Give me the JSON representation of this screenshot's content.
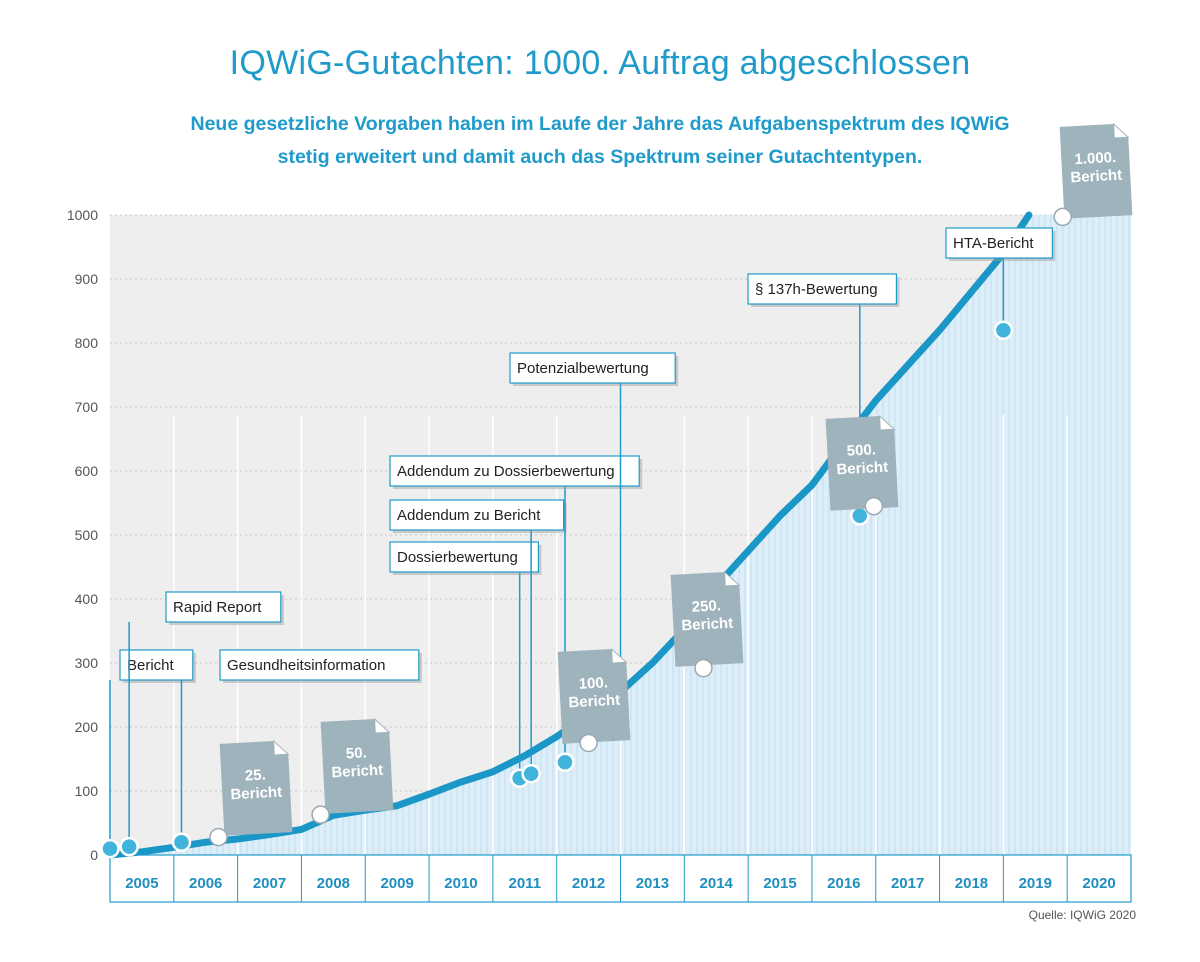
{
  "header": {
    "title": "IQWiG-Gutachten: 1000. Auftrag abgeschlossen",
    "subtitle_line1": "Neue gesetzliche Vorgaben haben im Laufe der Jahre das Aufgabenspektrum des IQWiG",
    "subtitle_line2": "stetig erweitert und damit auch das Spektrum seiner Gutachtentypen."
  },
  "footer": {
    "source": "Quelle: IQWiG 2020"
  },
  "colors": {
    "accent": "#1f9bcb",
    "line": "#1a97c7",
    "area": "#deeef8",
    "plot_bg": "#eeeeee",
    "doc": "#9fb3bd",
    "label_border": "#1f9bcb"
  },
  "chart_data": {
    "type": "area",
    "title": "IQWiG-Gutachten: 1000. Auftrag abgeschlossen",
    "xlabel": "",
    "ylabel": "",
    "ylim": [
      0,
      1000
    ],
    "yticks": [
      0,
      100,
      200,
      300,
      400,
      500,
      600,
      700,
      800,
      900,
      1000
    ],
    "categories": [
      "2005",
      "2006",
      "2007",
      "2008",
      "2009",
      "2010",
      "2011",
      "2012",
      "2013",
      "2014",
      "2015",
      "2016",
      "2017",
      "2018",
      "2019",
      "2020"
    ],
    "grid": true,
    "series": [
      {
        "points": [
          {
            "x": 2005.0,
            "y": 0
          },
          {
            "x": 2005.5,
            "y": 5
          },
          {
            "x": 2006.0,
            "y": 12
          },
          {
            "x": 2006.5,
            "y": 20
          },
          {
            "x": 2007.0,
            "y": 25
          },
          {
            "x": 2007.5,
            "y": 32
          },
          {
            "x": 2008.0,
            "y": 40
          },
          {
            "x": 2008.5,
            "y": 62
          },
          {
            "x": 2009.0,
            "y": 70
          },
          {
            "x": 2009.5,
            "y": 77
          },
          {
            "x": 2010.0,
            "y": 95
          },
          {
            "x": 2010.5,
            "y": 114
          },
          {
            "x": 2011.0,
            "y": 130
          },
          {
            "x": 2011.5,
            "y": 155
          },
          {
            "x": 2012.0,
            "y": 185
          },
          {
            "x": 2012.5,
            "y": 220
          },
          {
            "x": 2013.0,
            "y": 255
          },
          {
            "x": 2013.5,
            "y": 300
          },
          {
            "x": 2014.0,
            "y": 353
          },
          {
            "x": 2014.5,
            "y": 420
          },
          {
            "x": 2015.0,
            "y": 475
          },
          {
            "x": 2015.5,
            "y": 530
          },
          {
            "x": 2016.0,
            "y": 578
          },
          {
            "x": 2016.5,
            "y": 645
          },
          {
            "x": 2017.0,
            "y": 710
          },
          {
            "x": 2017.5,
            "y": 765
          },
          {
            "x": 2018.0,
            "y": 820
          },
          {
            "x": 2018.5,
            "y": 880
          },
          {
            "x": 2019.0,
            "y": 940
          },
          {
            "x": 2019.4,
            "y": 1000
          }
        ]
      }
    ],
    "milestones": [
      {
        "label": "Bericht",
        "x": 2005.0,
        "y": 10
      },
      {
        "label": "Rapid Report",
        "x": 2005.3,
        "y": 13
      },
      {
        "label": "Gesundheitsinformation",
        "x": 2006.12,
        "y": 20
      },
      {
        "label": "Dossierbewertung",
        "x": 2011.42,
        "y": 120
      },
      {
        "label": "Addendum zu Bericht",
        "x": 2011.6,
        "y": 127
      },
      {
        "label": "Addendum zu Dossierbewertung",
        "x": 2012.13,
        "y": 145
      },
      {
        "label": "Potenzialbewertung",
        "x": 2013.0,
        "y": 203
      },
      {
        "label": "§ 137h-Bewertung",
        "x": 2016.75,
        "y": 530
      },
      {
        "label": "HTA-Bericht",
        "x": 2019.0,
        "y": 820
      }
    ],
    "reports": [
      {
        "label_line1": "25.",
        "label_line2": "Bericht",
        "x": 2006.7,
        "y": 28
      },
      {
        "label_line1": "50.",
        "label_line2": "Bericht",
        "x": 2008.3,
        "y": 63
      },
      {
        "label_line1": "100.",
        "label_line2": "Bericht",
        "x": 2012.5,
        "y": 175
      },
      {
        "label_line1": "250.",
        "label_line2": "Bericht",
        "x": 2014.3,
        "y": 292
      },
      {
        "label_line1": "500.",
        "label_line2": "Bericht",
        "x": 2016.97,
        "y": 545
      },
      {
        "label_line1": "1.000.",
        "label_line2": "Bericht",
        "x": 2019.93,
        "y": 997
      }
    ]
  }
}
